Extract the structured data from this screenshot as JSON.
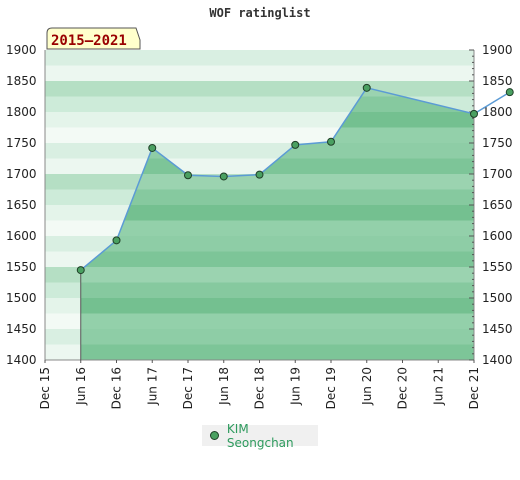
{
  "chart_data": {
    "type": "line",
    "title": "WOF ratinglist",
    "period_badge": "2015–2021",
    "x_ticks": [
      "Dec 15",
      "Jun 16",
      "Dec 16",
      "Jun 17",
      "Dec 17",
      "Jun 18",
      "Dec 18",
      "Jun 19",
      "Dec 19",
      "Jun 20",
      "Dec 20",
      "Jun 21",
      "Dec 21"
    ],
    "y_ticks": [
      "1900",
      "1850",
      "1800",
      "1750",
      "1700",
      "1650",
      "1600",
      "1550",
      "1500",
      "1450",
      "1400"
    ],
    "ylim": [
      1400,
      1900
    ],
    "grid": false,
    "legend_position": "bottom-center",
    "series": [
      {
        "name": "KIM Seongchan",
        "points": [
          {
            "x": "2015-12",
            "y": 1545
          },
          {
            "x": "2016-06",
            "y": 1593
          },
          {
            "x": "2016-12",
            "y": 1742
          },
          {
            "x": "2017-06",
            "y": 1698
          },
          {
            "x": "2017-12",
            "y": 1696
          },
          {
            "x": "2018-06",
            "y": 1699
          },
          {
            "x": "2018-12",
            "y": 1747
          },
          {
            "x": "2019-06",
            "y": 1752
          },
          {
            "x": "2019-12",
            "y": 1839
          },
          {
            "x": "2021-06",
            "y": 1797
          },
          {
            "x": "2021-12",
            "y": 1832
          }
        ]
      }
    ],
    "colors": {
      "line": "#5b9bd5",
      "marker_fill": "#4aa061",
      "marker_stroke": "#1f3f27",
      "legend_text": "#2e9b5e",
      "badge_fill": "#ffffcc",
      "badge_text": "#990000"
    }
  }
}
